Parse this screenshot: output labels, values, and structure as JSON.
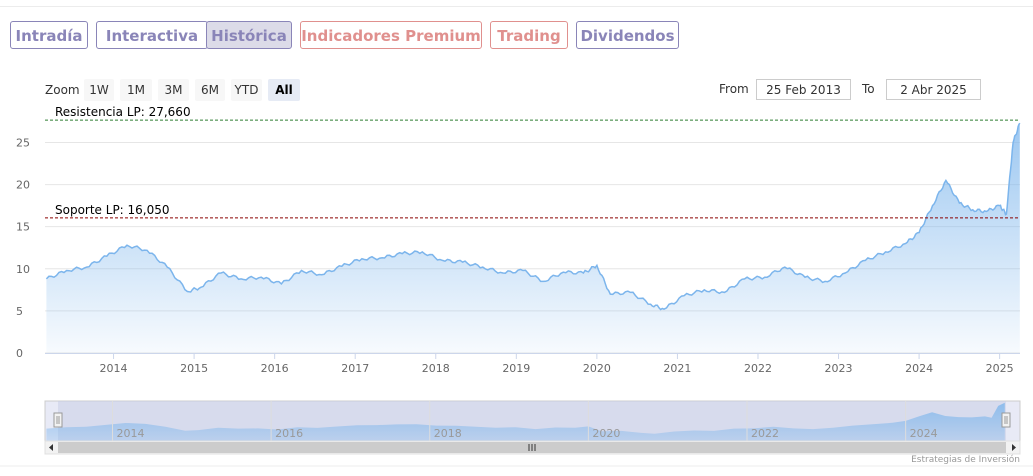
{
  "tabs": [
    {
      "label": "Intradía",
      "state": "normal"
    },
    {
      "label": "Interactiva",
      "state": "normal"
    },
    {
      "label": "Histórica",
      "state": "active"
    },
    {
      "label": "Indicadores Premium",
      "state": "premium"
    },
    {
      "label": "Trading",
      "state": "premium"
    },
    {
      "label": "Dividendos",
      "state": "normal"
    }
  ],
  "range_selector": {
    "zoom_label": "Zoom",
    "buttons": [
      "1W",
      "1M",
      "3M",
      "6M",
      "YTD",
      "All"
    ],
    "selected": "All",
    "from_label": "From",
    "from_value": "25 Feb 2013",
    "to_label": "To",
    "to_value": "2 Abr 2025"
  },
  "credit": "Estrategias de Inversión",
  "colors": {
    "tab": "#8a85b8",
    "premium": "#e0908e",
    "series": "#7cb5ec",
    "resistance": "#2e7d32",
    "support": "#8b0000"
  },
  "chart_data": {
    "type": "area",
    "x_axis": {
      "ticks": [
        "2014",
        "2015",
        "2016",
        "2017",
        "2018",
        "2019",
        "2020",
        "2021",
        "2022",
        "2023",
        "2024",
        "2025"
      ],
      "range": [
        "2013-02-25",
        "2025-04-02"
      ]
    },
    "y_axis": {
      "ticks": [
        0,
        5,
        10,
        15,
        20,
        25
      ],
      "range": [
        0,
        28.5
      ]
    },
    "grid": true,
    "series": [
      {
        "x": [
          "2013-03",
          "2013-06",
          "2013-09",
          "2013-12",
          "2014-03",
          "2014-06",
          "2014-09",
          "2014-12",
          "2015-02",
          "2015-05",
          "2015-08",
          "2015-11",
          "2016-02",
          "2016-05",
          "2016-08",
          "2016-11",
          "2017-02",
          "2017-05",
          "2017-08",
          "2017-11",
          "2018-02",
          "2018-05",
          "2018-08",
          "2018-11",
          "2019-02",
          "2019-05",
          "2019-08",
          "2019-11",
          "2020-01",
          "2020-03",
          "2020-06",
          "2020-09",
          "2020-11",
          "2021-02",
          "2021-05",
          "2021-08",
          "2021-11",
          "2022-02",
          "2022-05",
          "2022-08",
          "2022-11",
          "2023-02",
          "2023-05",
          "2023-08",
          "2023-11",
          "2024-01",
          "2024-03",
          "2024-05",
          "2024-07",
          "2024-09",
          "2024-11",
          "2025-01",
          "2025-02",
          "2025-03",
          "2025-04"
        ],
        "y": [
          8.8,
          9.8,
          10.2,
          11.5,
          12.8,
          12.2,
          10.2,
          7.3,
          7.8,
          9.5,
          8.8,
          9.0,
          8.2,
          9.8,
          9.3,
          10.3,
          11.2,
          11.3,
          11.8,
          12.0,
          11.0,
          10.8,
          10.2,
          9.5,
          9.8,
          8.5,
          9.6,
          9.5,
          10.4,
          7.0,
          7.2,
          5.8,
          5.2,
          6.8,
          7.5,
          7.2,
          8.8,
          9.0,
          10.2,
          9.0,
          8.5,
          9.5,
          11.0,
          12.0,
          13.0,
          14.3,
          17.5,
          20.5,
          17.8,
          17.0,
          16.8,
          17.5,
          16.5,
          25.0,
          27.3
        ]
      }
    ],
    "annotations": [
      {
        "label": "Resistencia LP: 27,660",
        "value": 27.66,
        "style": "dashed",
        "color": "#2e7d32"
      },
      {
        "label": "Soporte LP: 16,050",
        "value": 16.05,
        "style": "dashed",
        "color": "#8b0000"
      }
    ],
    "navigator": {
      "ticks": [
        "2014",
        "2016",
        "2018",
        "2020",
        "2022",
        "2024"
      ]
    }
  }
}
